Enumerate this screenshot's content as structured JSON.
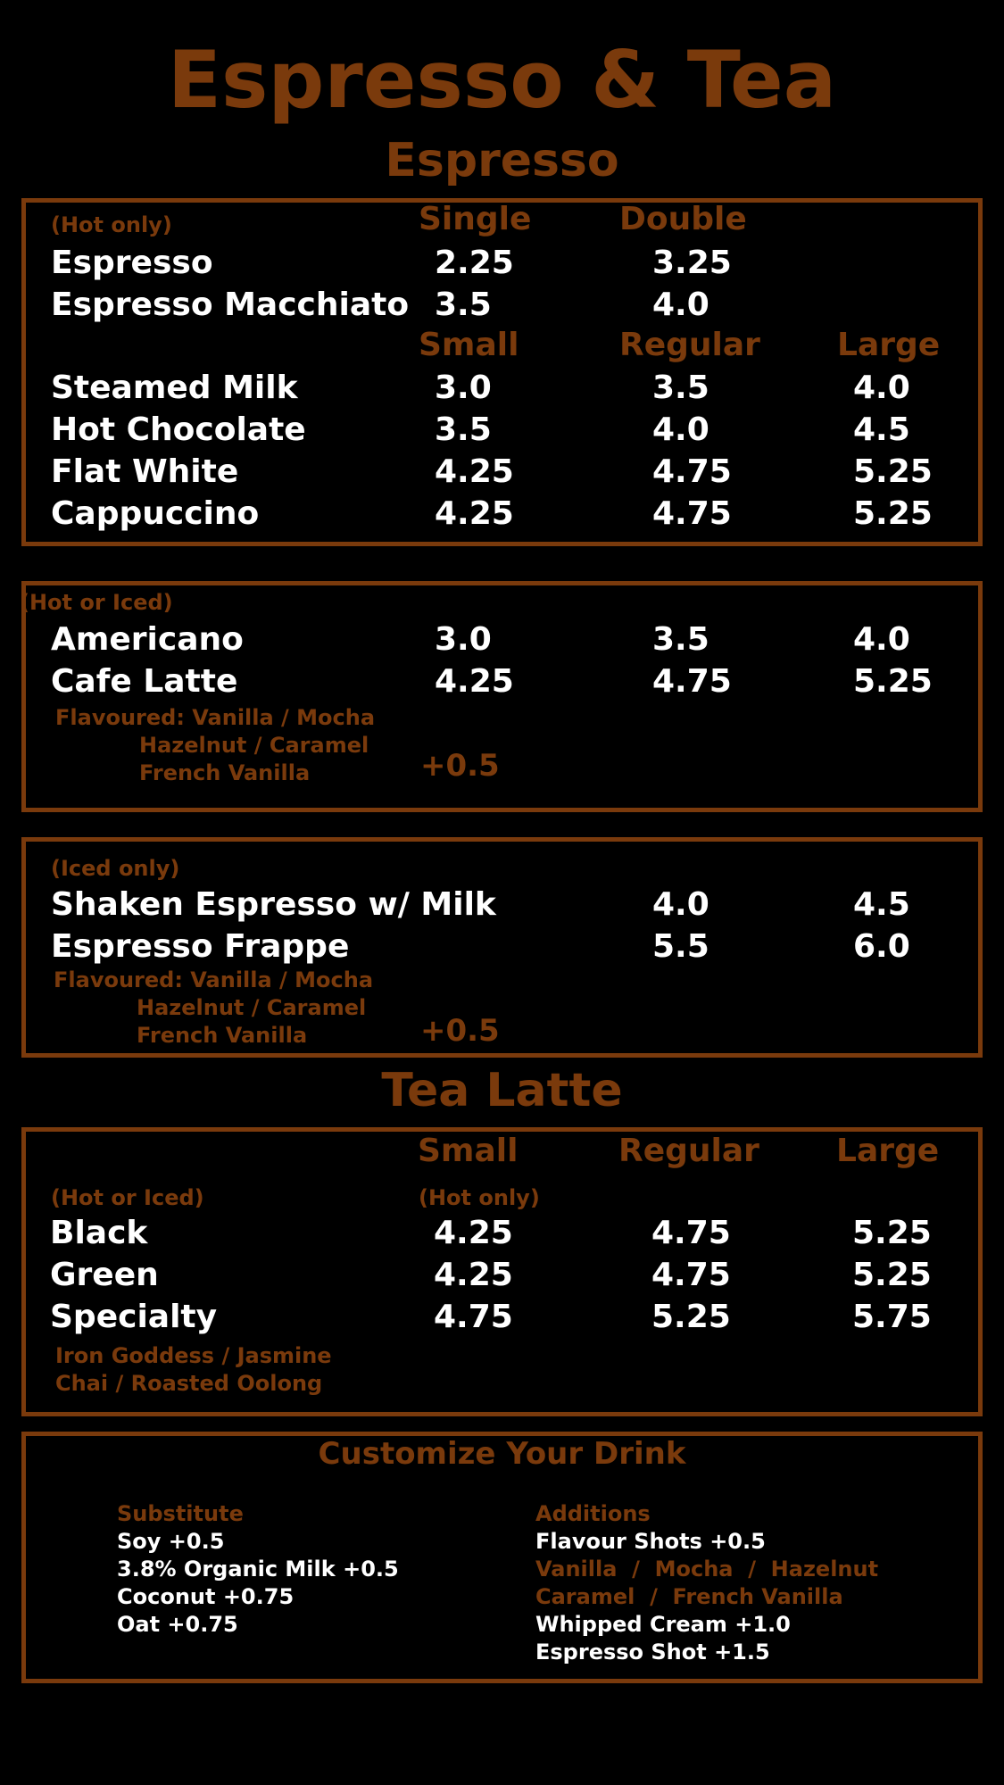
{
  "title": "Espresso & Tea",
  "espresso_heading": "Espresso",
  "box1": {
    "note": "(Hot only)",
    "headers_a": [
      "Single",
      "Double"
    ],
    "rows_a": [
      {
        "name": "Espresso",
        "prices": [
          "2.25",
          "3.25"
        ]
      },
      {
        "name": "Espresso Macchiato",
        "prices": [
          "3.5",
          "4.0"
        ]
      }
    ],
    "headers_b": [
      "Small",
      "Regular",
      "Large"
    ],
    "rows_b": [
      {
        "name": "Steamed Milk",
        "prices": [
          "3.0",
          "3.5",
          "4.0"
        ]
      },
      {
        "name": "Hot Chocolate",
        "prices": [
          "3.5",
          "4.0",
          "4.5"
        ]
      },
      {
        "name": "Flat White",
        "prices": [
          "4.25",
          "4.75",
          "5.25"
        ]
      },
      {
        "name": "Cappuccino",
        "prices": [
          "4.25",
          "4.75",
          "5.25"
        ]
      }
    ]
  },
  "box2": {
    "note": "(Hot or Iced)",
    "rows": [
      {
        "name": "Americano",
        "prices": [
          "3.0",
          "3.5",
          "4.0"
        ]
      },
      {
        "name": "Cafe Latte",
        "prices": [
          "4.25",
          "4.75",
          "5.25"
        ]
      }
    ],
    "flavours": [
      "Flavoured: Vanilla / Mocha",
      "Hazelnut / Caramel",
      "French Vanilla"
    ],
    "surcharge": "+0.5"
  },
  "box3": {
    "note": "(Iced only)",
    "rows": [
      {
        "name": "Shaken Espresso w/ Milk",
        "prices": [
          "4.0",
          "4.5"
        ]
      },
      {
        "name": "Espresso Frappe",
        "prices": [
          "5.5",
          "6.0"
        ]
      }
    ],
    "flavours": [
      "Flavoured: Vanilla / Mocha",
      "Hazelnut / Caramel",
      "French Vanilla"
    ],
    "surcharge": "+0.5"
  },
  "tea_heading": "Tea Latte",
  "box4": {
    "headers": [
      "Small",
      "Regular",
      "Large"
    ],
    "note_left": "(Hot or Iced)",
    "note_small": "(Hot only)",
    "rows": [
      {
        "name": "Black",
        "prices": [
          "4.25",
          "4.75",
          "5.25"
        ]
      },
      {
        "name": "Green",
        "prices": [
          "4.25",
          "4.75",
          "5.25"
        ]
      },
      {
        "name": "Specialty",
        "prices": [
          "4.75",
          "5.25",
          "5.75"
        ]
      }
    ],
    "varieties": [
      "Iron Goddess / Jasmine",
      "Chai / Roasted Oolong"
    ]
  },
  "customize": {
    "title": "Customize Your Drink",
    "substitute_heading": "Substitute",
    "substitutes": [
      "Soy +0.5",
      "3.8% Organic Milk +0.5",
      "Coconut +0.75",
      "Oat +0.75"
    ],
    "additions_heading": "Additions",
    "flavour_shots": "Flavour Shots +0.5",
    "flavour_options": [
      "Vanilla  /  Mocha  /  Hazelnut",
      "Caramel  /  French Vanilla"
    ],
    "whipped_cream": "Whipped Cream +1.0",
    "espresso_shot": "Espresso Shot +1.5"
  }
}
